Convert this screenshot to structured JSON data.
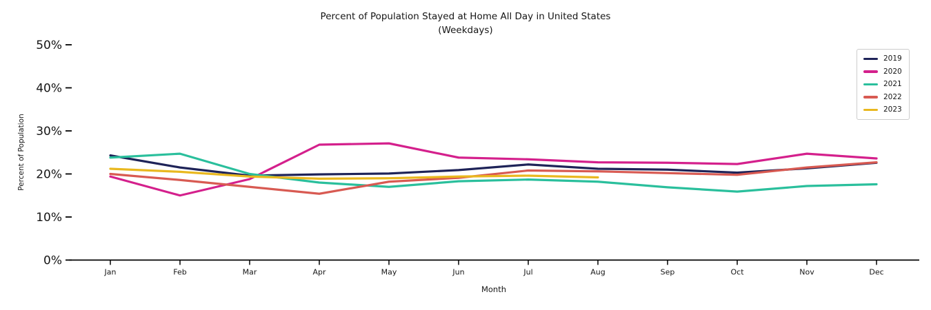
{
  "figure": {
    "title_line1": "Percent of Population Stayed at Home All Day in United States",
    "title_line2": "(Weekdays)",
    "xlabel": "Month",
    "ylabel": "Percent of Population"
  },
  "chart_data": {
    "type": "line",
    "title": "Percent of Population Stayed at Home All Day in United States (Weekdays)",
    "xlabel": "Month",
    "ylabel": "Percent of Population",
    "categories": [
      "Jan",
      "Feb",
      "Mar",
      "Apr",
      "May",
      "Jun",
      "Jul",
      "Aug",
      "Sep",
      "Oct",
      "Nov",
      "Dec"
    ],
    "ylim": [
      0,
      50
    ],
    "yticks": [
      0,
      10,
      20,
      30,
      40,
      50
    ],
    "ytick_labels": [
      "0%",
      "10%",
      "20%",
      "30%",
      "40%",
      "50%"
    ],
    "grid": false,
    "legend_position": "upper right",
    "axis_color": "#000000",
    "series": [
      {
        "name": "2019",
        "color": "#1e2358",
        "values": [
          24.3,
          21.5,
          19.6,
          19.9,
          20.1,
          20.9,
          22.2,
          21.2,
          21.0,
          20.3,
          21.3,
          22.6
        ]
      },
      {
        "name": "2020",
        "color": "#d4208c",
        "values": [
          19.4,
          15.0,
          18.8,
          26.8,
          27.1,
          23.8,
          23.4,
          22.7,
          22.6,
          22.3,
          24.7,
          23.6
        ]
      },
      {
        "name": "2021",
        "color": "#2abf9c",
        "values": [
          23.8,
          24.7,
          20.0,
          18.0,
          17.0,
          18.3,
          18.7,
          18.2,
          16.9,
          15.9,
          17.2,
          17.6
        ]
      },
      {
        "name": "2022",
        "color": "#d85a52",
        "values": [
          20.0,
          18.6,
          17.0,
          15.4,
          18.2,
          19.1,
          20.8,
          20.6,
          20.2,
          19.8,
          21.5,
          22.7
        ]
      },
      {
        "name": "2023",
        "color": "#e9b81f",
        "values": [
          21.2,
          20.5,
          19.4,
          18.9,
          19.0,
          19.4,
          19.6,
          19.2
        ]
      }
    ]
  }
}
